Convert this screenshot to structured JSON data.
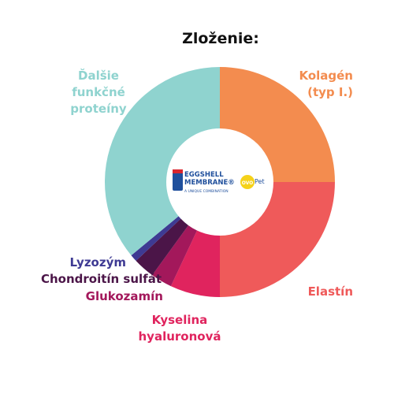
{
  "chart_data": {
    "type": "donut",
    "title": "Zloženie:",
    "categories": [
      "Kolagén (typ I.)",
      "Elastín",
      "Kyselina hyaluronová",
      "Glukozamín",
      "Chondroitín sulfát",
      "Lyzozým",
      "Ďalšie funkčné proteíny"
    ],
    "values": [
      25,
      25,
      7,
      3,
      3,
      1,
      36
    ],
    "colors": [
      "#f38c4f",
      "#ef5a5a",
      "#e0245e",
      "#a3185b",
      "#4b1548",
      "#3e3a93",
      "#8fd3cf"
    ]
  },
  "logo": {
    "brand_line1": "EGGSHELL",
    "brand_line2": "MEMBRANE®",
    "tagline": "A UNIQUE COMBINATION",
    "badge_ovo": "OVO",
    "badge_pet": "Pet"
  }
}
